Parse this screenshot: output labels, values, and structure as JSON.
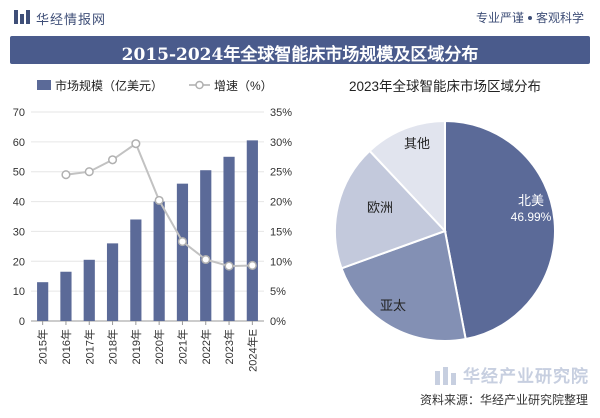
{
  "header": {
    "brand": "华经情报网",
    "tagline_left": "专业严谨",
    "tagline_right": "客观科学",
    "title": "2015-2024年全球智能床市场规模及区域分布"
  },
  "footer": {
    "brand": "华经产业研究院",
    "source": "资料来源：华经产业研究院整理"
  },
  "colors": {
    "bar": "#5b6a98",
    "line": "#c2c2c2",
    "title_bg": "#4a5b8c"
  },
  "chart_data": [
    {
      "type": "bar",
      "categories": [
        "2015年",
        "2016年",
        "2017年",
        "2018年",
        "2019年",
        "2020年",
        "2021年",
        "2022年",
        "2023年",
        "2024年E"
      ],
      "series": [
        {
          "name": "市场规模（亿美元）",
          "type": "bar",
          "axis": "left",
          "values": [
            13,
            16.5,
            20.5,
            26,
            34,
            40,
            46,
            50.5,
            55,
            60.5
          ]
        },
        {
          "name": "增速（%）",
          "type": "line",
          "axis": "right",
          "values": [
            null,
            24.5,
            25,
            27,
            29.7,
            20.2,
            13.3,
            10.3,
            9.2,
            9.3
          ]
        }
      ],
      "y_left": {
        "min": 0,
        "max": 70,
        "ticks": [
          0,
          10,
          20,
          30,
          40,
          50,
          60,
          70
        ]
      },
      "y_right": {
        "min": 0,
        "max": 35,
        "ticks": [
          "0%",
          "5%",
          "10%",
          "15%",
          "20%",
          "25%",
          "30%",
          "35%"
        ]
      },
      "legend_position": "top"
    },
    {
      "type": "pie",
      "title": "2023年全球智能床市场区域分布",
      "slices": [
        {
          "label": "北美",
          "value": 46.99,
          "value_label": "46.99%",
          "color": "#5b6a98"
        },
        {
          "label": "亚太",
          "value": 22.5,
          "color": "#8390b4"
        },
        {
          "label": "欧洲",
          "value": 18.5,
          "color": "#c3c9dc"
        },
        {
          "label": "其他",
          "value": 12.01,
          "color": "#e1e4ee"
        }
      ]
    }
  ]
}
